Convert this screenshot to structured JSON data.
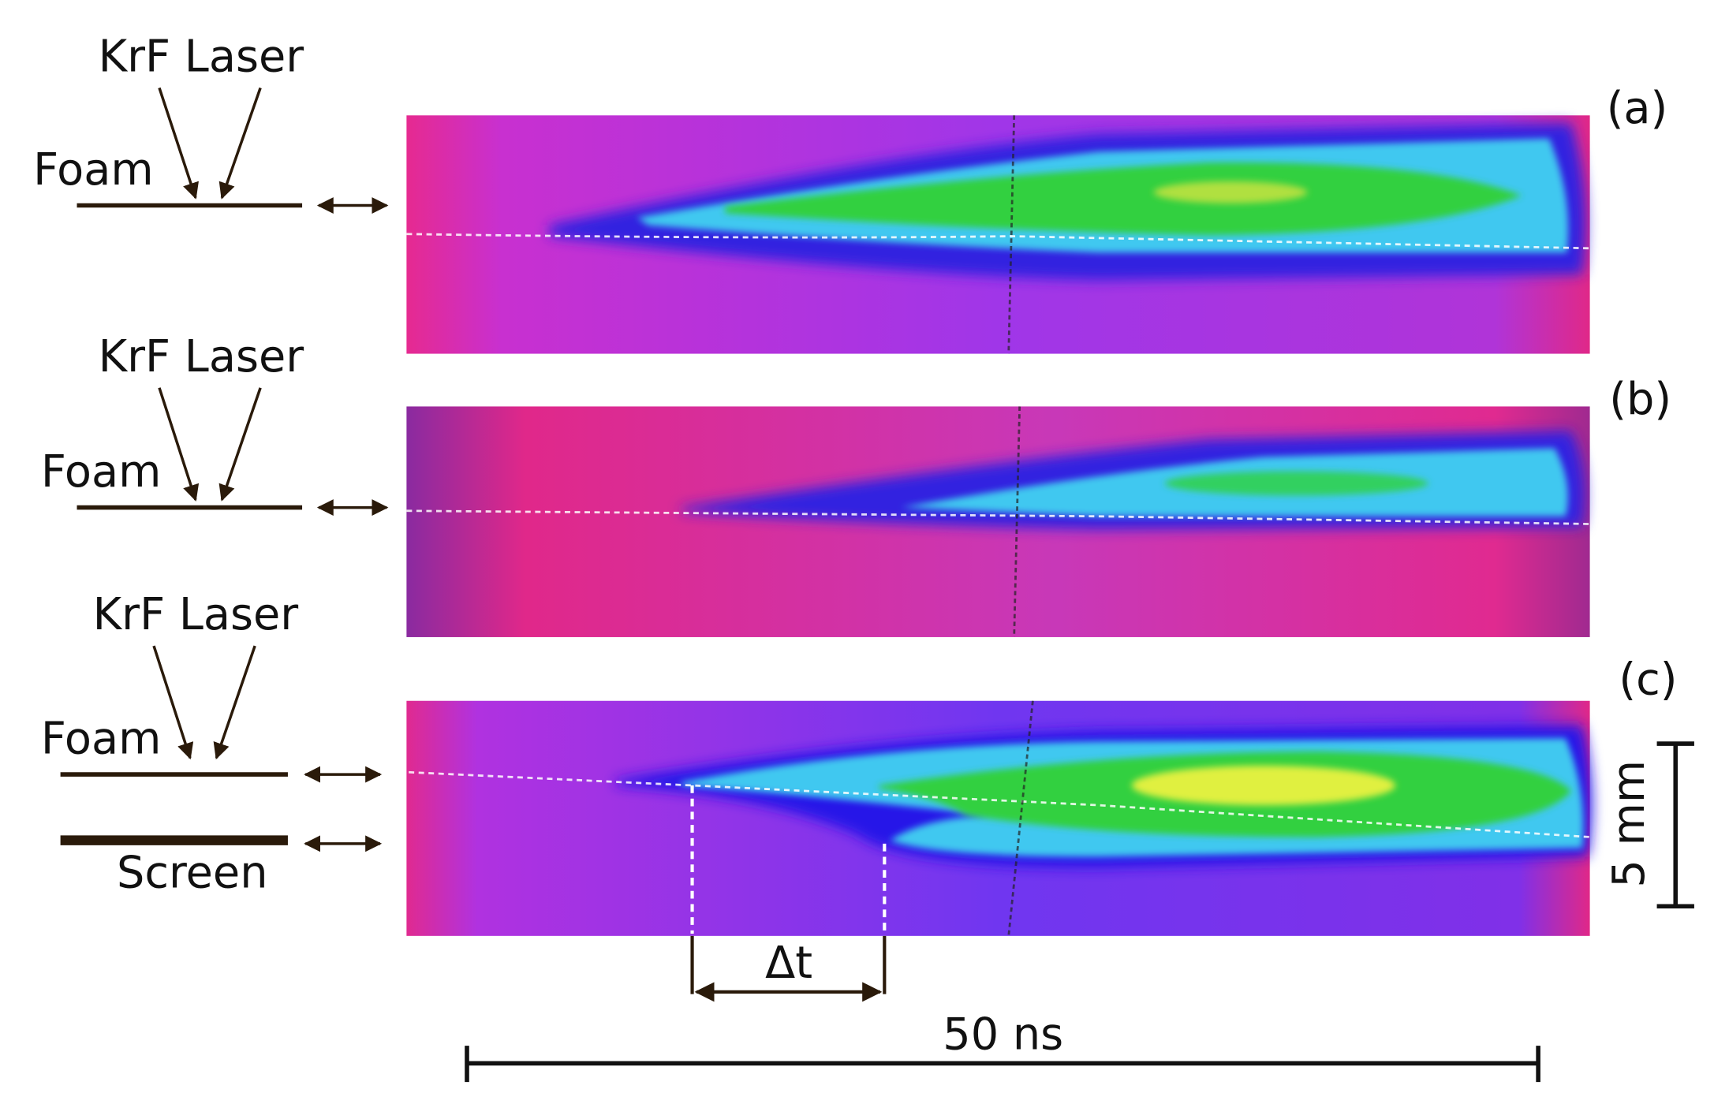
{
  "panels": [
    {
      "label": "(a)",
      "laser": "KrF Laser",
      "target": "Foam"
    },
    {
      "label": "(b)",
      "laser": "KrF Laser",
      "target": "Foam"
    },
    {
      "label": "(c)",
      "laser": "KrF Laser",
      "target": "Foam",
      "screen": "Screen"
    }
  ],
  "delay": "Δt",
  "scale_bars": {
    "vertical": "5 mm",
    "horizontal": "50 ns"
  }
}
